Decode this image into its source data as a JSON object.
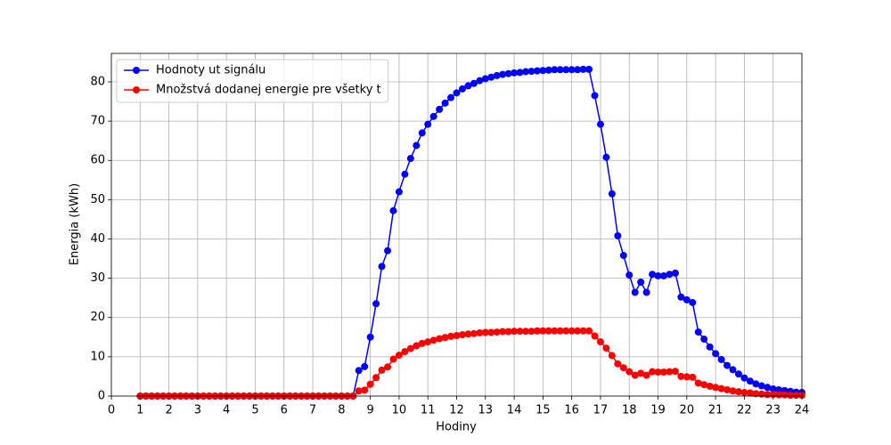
{
  "chart_data": {
    "type": "line",
    "xlabel": "Hodiny",
    "ylabel": "Energia (kWh)",
    "x": [
      1,
      1.2,
      1.4,
      1.6,
      1.8,
      2,
      2.2,
      2.4,
      2.6,
      2.8,
      3,
      3.2,
      3.4,
      3.6,
      3.8,
      4,
      4.2,
      4.4,
      4.6,
      4.8,
      5,
      5.2,
      5.4,
      5.6,
      5.8,
      6,
      6.2,
      6.4,
      6.6,
      6.8,
      7,
      7.2,
      7.4,
      7.6,
      7.8,
      8,
      8.2,
      8.4,
      8.6,
      8.8,
      9,
      9.2,
      9.4,
      9.6,
      9.8,
      10,
      10.2,
      10.4,
      10.6,
      10.8,
      11,
      11.2,
      11.4,
      11.6,
      11.8,
      12,
      12.2,
      12.4,
      12.6,
      12.8,
      13,
      13.2,
      13.4,
      13.6,
      13.8,
      14,
      14.2,
      14.4,
      14.6,
      14.8,
      15,
      15.2,
      15.4,
      15.6,
      15.8,
      16,
      16.2,
      16.4,
      16.6,
      16.8,
      17,
      17.2,
      17.4,
      17.6,
      17.8,
      18,
      18.2,
      18.4,
      18.6,
      18.8,
      19,
      19.2,
      19.4,
      19.6,
      19.8,
      20,
      20.2,
      20.4,
      20.6,
      20.8,
      21,
      21.2,
      21.4,
      21.6,
      21.8,
      22,
      22.2,
      22.4,
      22.6,
      22.8,
      23,
      23.2,
      23.4,
      23.6,
      23.8,
      24
    ],
    "series": [
      {
        "name": "Hodnoty ut signálu",
        "color": "#0000ff",
        "values": [
          0,
          0,
          0,
          0,
          0,
          0,
          0,
          0,
          0,
          0,
          0,
          0,
          0,
          0,
          0,
          0,
          0,
          0,
          0,
          0,
          0,
          0,
          0,
          0,
          0,
          0,
          0,
          0,
          0,
          0,
          0,
          0,
          0,
          0,
          0,
          0,
          0,
          0,
          6.5,
          7.5,
          15,
          23.5,
          33,
          37,
          47.2,
          52,
          56.5,
          60.5,
          63.8,
          67,
          69.2,
          71.2,
          73,
          74.6,
          76,
          77.2,
          78.2,
          79,
          79.6,
          80.3,
          80.8,
          81.2,
          81.6,
          81.9,
          82.1,
          82.3,
          82.4,
          82.6,
          82.7,
          82.8,
          82.9,
          83,
          83.1,
          83.1,
          83.1,
          83.1,
          83.1,
          83.2,
          83.2,
          76.5,
          69.2,
          60.8,
          51.5,
          40.8,
          35.8,
          30.8,
          26.4,
          29,
          26.4,
          31,
          30.6,
          30.6,
          31,
          31.3,
          25.2,
          24.5,
          23.8,
          16.3,
          14.5,
          12.5,
          10.8,
          9.3,
          7.8,
          6.7,
          5.6,
          4.6,
          3.8,
          3.1,
          2.6,
          2.2,
          1.8,
          1.6,
          1.4,
          1.2,
          1.0,
          0.9
        ]
      },
      {
        "name": "Množstvá dodanej energie pre všetky t",
        "color": "#ff0000",
        "values": [
          0,
          0,
          0,
          0,
          0,
          0,
          0,
          0,
          0,
          0,
          0,
          0,
          0,
          0,
          0,
          0,
          0,
          0,
          0,
          0,
          0,
          0,
          0,
          0,
          0,
          0,
          0,
          0,
          0,
          0,
          0,
          0,
          0,
          0,
          0,
          0,
          0,
          0,
          1.3,
          1.5,
          3,
          4.7,
          6.6,
          7.4,
          9.4,
          10.4,
          11.3,
          12.1,
          12.8,
          13.4,
          13.8,
          14.2,
          14.6,
          14.9,
          15.2,
          15.4,
          15.6,
          15.8,
          15.9,
          16.1,
          16.2,
          16.2,
          16.3,
          16.4,
          16.4,
          16.5,
          16.5,
          16.5,
          16.5,
          16.6,
          16.6,
          16.6,
          16.6,
          16.6,
          16.6,
          16.6,
          16.6,
          16.6,
          16.6,
          15.3,
          13.8,
          12.2,
          10.3,
          8.2,
          7.2,
          6.2,
          5.3,
          5.8,
          5.3,
          6.2,
          6.1,
          6.1,
          6.2,
          6.3,
          5.0,
          4.9,
          4.8,
          3.3,
          2.9,
          2.5,
          2.2,
          1.9,
          1.6,
          1.3,
          1.1,
          0.9,
          0.8,
          0.6,
          0.5,
          0.4,
          0.4,
          0.3,
          0.3,
          0.2,
          0.2,
          0.2
        ]
      }
    ],
    "xlim": [
      0,
      24
    ],
    "xticks": [
      0,
      1,
      2,
      3,
      4,
      5,
      6,
      7,
      8,
      9,
      10,
      11,
      12,
      13,
      14,
      15,
      16,
      17,
      18,
      19,
      20,
      21,
      22,
      23,
      24
    ],
    "ylim": [
      0,
      87.25
    ],
    "yticks": [
      0,
      10,
      20,
      30,
      40,
      50,
      60,
      70,
      80
    ],
    "grid": true,
    "legend": "upper left"
  }
}
